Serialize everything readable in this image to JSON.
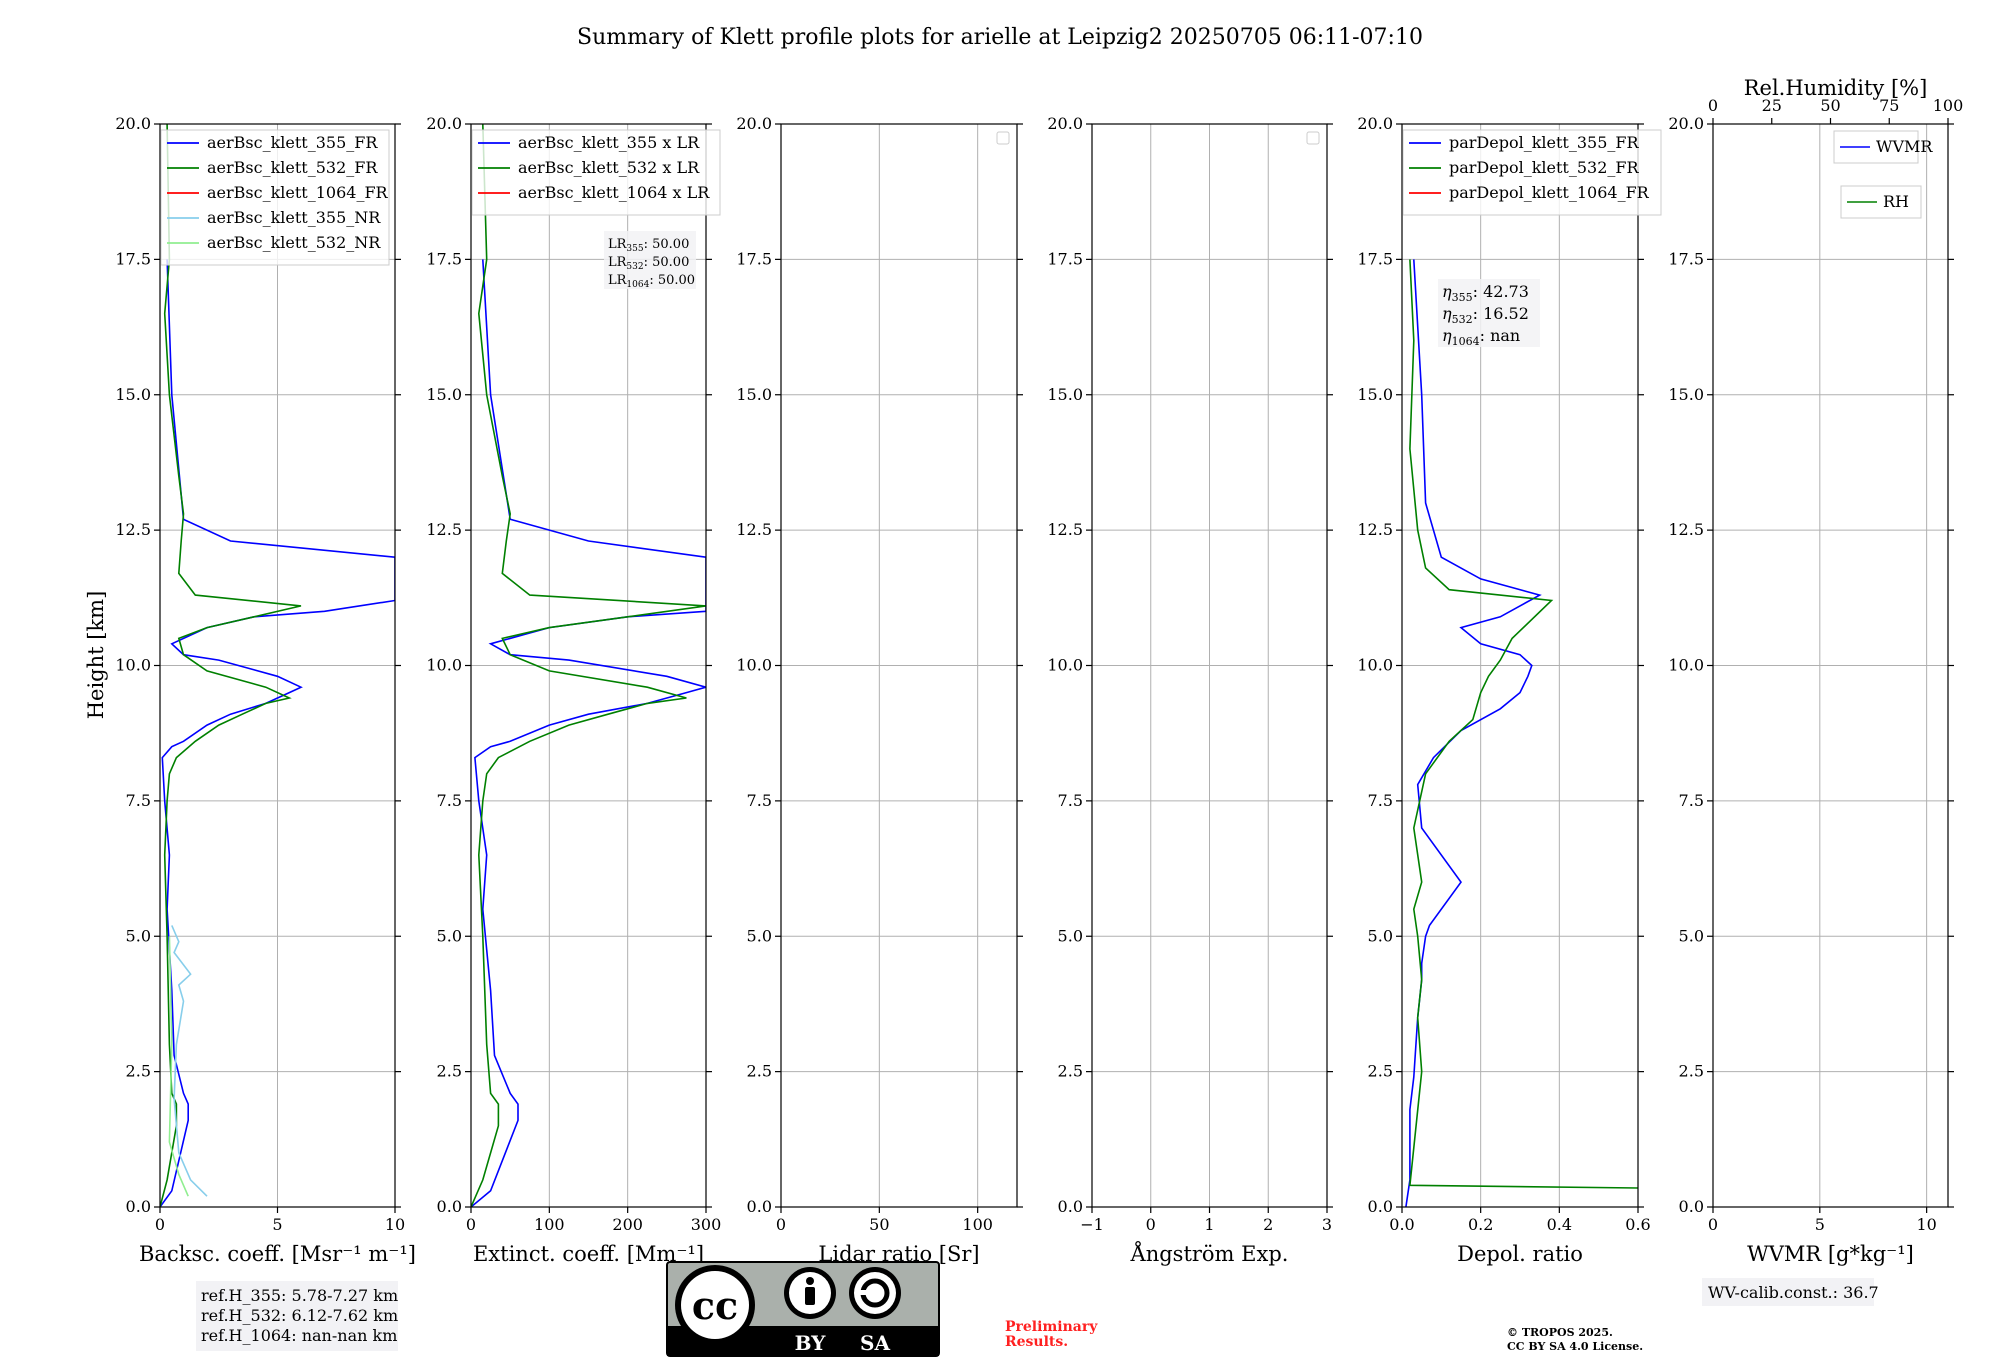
{
  "figure": {
    "title": "Summary of Klett profile plots for arielle at Leipzig2 20250705 06:11-07:10",
    "ylabel": "Height [km]"
  },
  "chart_data": [
    {
      "type": "line",
      "name": "backscatter",
      "xlabel": "Backsc. coeff. [Msr⁻¹ m⁻¹]",
      "xlim": [
        0,
        10
      ],
      "xticks": [
        "0",
        "5",
        "10"
      ],
      "ylim": [
        0,
        20
      ],
      "yticks": [
        "0.0",
        "2.5",
        "5.0",
        "7.5",
        "10.0",
        "12.5",
        "15.0",
        "17.5",
        "20.0"
      ],
      "legend": [
        "aerBsc_klett_355_FR",
        "aerBsc_klett_532_FR",
        "aerBsc_klett_1064_FR",
        "aerBsc_klett_355_NR",
        "aerBsc_klett_532_NR"
      ],
      "series": [
        {
          "name": "aerBsc_klett_355_FR",
          "color": "#0000ff",
          "x": [
            0.0,
            0.5,
            1.2,
            1.2,
            1.0,
            0.6,
            0.5,
            0.3,
            0.4,
            0.2,
            0.1,
            0.5,
            1.0,
            2.0,
            3.0,
            4.5,
            5.5,
            6.0,
            5.0,
            2.5,
            1.0,
            0.5,
            2.0,
            4.0,
            7.0,
            10.0,
            10.0,
            10.0,
            3.0,
            1.0,
            0.5,
            0.3
          ],
          "y": [
            0.0,
            0.3,
            1.6,
            1.9,
            2.1,
            2.8,
            4.0,
            5.5,
            6.5,
            7.5,
            8.3,
            8.5,
            8.6,
            8.9,
            9.1,
            9.3,
            9.5,
            9.6,
            9.8,
            10.1,
            10.2,
            10.4,
            10.7,
            10.9,
            11.0,
            11.2,
            11.5,
            12.0,
            12.3,
            12.7,
            15.0,
            17.5
          ]
        },
        {
          "name": "aerBsc_klett_532_FR",
          "color": "#008000",
          "x": [
            0.0,
            0.3,
            0.7,
            0.7,
            0.5,
            0.4,
            0.3,
            0.2,
            0.3,
            0.4,
            0.7,
            1.5,
            2.5,
            3.5,
            4.5,
            5.5,
            4.5,
            2.0,
            1.0,
            0.8,
            2.0,
            4.0,
            6.0,
            1.5,
            0.8,
            0.9,
            1.0,
            0.8,
            0.4,
            0.2,
            0.4,
            0.3
          ],
          "y": [
            0.0,
            0.5,
            1.5,
            1.9,
            2.1,
            3.0,
            5.0,
            6.5,
            7.5,
            8.0,
            8.3,
            8.6,
            8.9,
            9.1,
            9.3,
            9.4,
            9.6,
            9.9,
            10.2,
            10.5,
            10.7,
            10.9,
            11.1,
            11.3,
            11.7,
            12.3,
            12.8,
            13.5,
            15.0,
            16.5,
            17.5,
            20.0
          ]
        },
        {
          "name": "aerBsc_klett_1064_FR",
          "color": "#ff0000",
          "x": [],
          "y": []
        },
        {
          "name": "aerBsc_klett_355_NR",
          "color": "#87ceeb",
          "x": [
            2.0,
            1.3,
            0.8,
            0.6,
            0.7,
            1.0,
            0.8,
            1.3,
            0.6,
            0.8,
            0.5
          ],
          "y": [
            0.2,
            0.5,
            1.0,
            2.0,
            3.0,
            3.8,
            4.1,
            4.3,
            4.7,
            4.9,
            5.2
          ]
        },
        {
          "name": "aerBsc_klett_532_NR",
          "color": "#90ee90",
          "x": [
            1.2,
            0.8,
            0.4,
            0.5,
            0.4
          ],
          "y": [
            0.2,
            0.6,
            1.2,
            3.0,
            5.0
          ]
        }
      ],
      "info": [
        "ref.H_355: 5.78-7.27 km",
        "ref.H_532: 6.12-7.62 km",
        "ref.H_1064: nan-nan km"
      ]
    },
    {
      "type": "line",
      "name": "extinction",
      "xlabel": "Extinct. coeff. [Mm⁻¹]",
      "xlim": [
        0,
        300
      ],
      "xticks": [
        "0",
        "100",
        "200",
        "300"
      ],
      "ylim": [
        0,
        20
      ],
      "legend": [
        "aerBsc_klett_355 x LR",
        "aerBsc_klett_532 x LR",
        "aerBsc_klett_1064 x LR"
      ],
      "lidar_ratios": {
        "lr355": "50.00",
        "lr532": "50.00",
        "lr1064": "50.00"
      },
      "series": [
        {
          "name": "aerBsc_klett_355 x LR",
          "color": "#0000ff",
          "x": [
            0,
            25,
            60,
            60,
            50,
            30,
            25,
            15,
            20,
            10,
            5,
            25,
            50,
            100,
            150,
            225,
            275,
            300,
            250,
            125,
            50,
            25,
            100,
            200,
            300,
            300,
            300,
            150,
            50,
            25,
            15
          ],
          "y": [
            0.0,
            0.3,
            1.6,
            1.9,
            2.1,
            2.8,
            4.0,
            5.5,
            6.5,
            7.5,
            8.3,
            8.5,
            8.6,
            8.9,
            9.1,
            9.3,
            9.5,
            9.6,
            9.8,
            10.1,
            10.2,
            10.4,
            10.7,
            10.9,
            11.0,
            11.5,
            12.0,
            12.3,
            12.7,
            15.0,
            17.5
          ]
        },
        {
          "name": "aerBsc_klett_532 x LR",
          "color": "#008000",
          "x": [
            0,
            15,
            35,
            35,
            25,
            20,
            15,
            10,
            15,
            20,
            35,
            75,
            125,
            175,
            225,
            275,
            225,
            100,
            50,
            40,
            100,
            200,
            300,
            75,
            40,
            45,
            50,
            40,
            20,
            10,
            20,
            15
          ],
          "y": [
            0.0,
            0.5,
            1.5,
            1.9,
            2.1,
            3.0,
            5.0,
            6.5,
            7.5,
            8.0,
            8.3,
            8.6,
            8.9,
            9.1,
            9.3,
            9.4,
            9.6,
            9.9,
            10.2,
            10.5,
            10.7,
            10.9,
            11.1,
            11.3,
            11.7,
            12.3,
            12.8,
            13.5,
            15.0,
            16.5,
            17.5,
            20.0
          ]
        },
        {
          "name": "aerBsc_klett_1064 x LR",
          "color": "#ff0000",
          "x": [],
          "y": []
        }
      ]
    },
    {
      "type": "line",
      "name": "lidar_ratio",
      "xlabel": "Lidar ratio [Sr]",
      "xlim": [
        0,
        120
      ],
      "xticks": [
        "0",
        "50",
        "100"
      ],
      "ylim": [
        0,
        20
      ],
      "series": []
    },
    {
      "type": "line",
      "name": "angstrom",
      "xlabel": "Ångström Exp.",
      "xlim": [
        -1,
        3
      ],
      "xticks": [
        "−1",
        "0",
        "1",
        "2",
        "3"
      ],
      "ylim": [
        0,
        20
      ],
      "series": []
    },
    {
      "type": "line",
      "name": "depol",
      "xlabel": "Depol. ratio",
      "xlim": [
        0,
        0.6
      ],
      "xticks": [
        "0.0",
        "0.2",
        "0.4",
        "0.6"
      ],
      "ylim": [
        0,
        20
      ],
      "legend": [
        "parDepol_klett_355_FR",
        "parDepol_klett_532_FR",
        "parDepol_klett_1064_FR"
      ],
      "eta": {
        "eta355": "42.73",
        "eta532": "16.52",
        "eta1064": "nan"
      },
      "series": [
        {
          "name": "parDepol_klett_355_FR",
          "color": "#0000ff",
          "x": [
            0.01,
            0.02,
            0.02,
            0.03,
            0.04,
            0.05,
            0.05,
            0.06,
            0.07,
            0.15,
            0.05,
            0.04,
            0.08,
            0.15,
            0.25,
            0.3,
            0.32,
            0.33,
            0.3,
            0.2,
            0.15,
            0.25,
            0.3,
            0.35,
            0.2,
            0.1,
            0.06,
            0.05,
            0.03
          ],
          "y": [
            0.0,
            0.5,
            1.8,
            2.4,
            3.5,
            4.2,
            4.5,
            5.0,
            5.2,
            6.0,
            7.0,
            7.8,
            8.3,
            8.8,
            9.2,
            9.5,
            9.8,
            10.0,
            10.2,
            10.4,
            10.7,
            10.9,
            11.1,
            11.3,
            11.6,
            12.0,
            13.0,
            15.0,
            17.5
          ]
        },
        {
          "name": "parDepol_klett_532_FR",
          "color": "#008000",
          "x": [
            0.6,
            0.02,
            0.05,
            0.04,
            0.05,
            0.04,
            0.03,
            0.05,
            0.03,
            0.06,
            0.12,
            0.18,
            0.2,
            0.22,
            0.25,
            0.28,
            0.38,
            0.12,
            0.06,
            0.04,
            0.02,
            0.03,
            0.02
          ],
          "y": [
            0.35,
            0.4,
            2.5,
            3.5,
            4.2,
            5.0,
            5.5,
            6.0,
            7.0,
            8.0,
            8.6,
            9.0,
            9.5,
            9.8,
            10.1,
            10.5,
            11.2,
            11.4,
            11.8,
            12.5,
            14.0,
            16.0,
            17.5
          ]
        },
        {
          "name": "parDepol_klett_1064_FR",
          "color": "#ff0000",
          "x": [],
          "y": []
        }
      ]
    },
    {
      "type": "line",
      "name": "wvmr",
      "xlabel": "WVMR [g*kg⁻¹]",
      "xlim": [
        0,
        11
      ],
      "xticks": [
        "0",
        "5",
        "10"
      ],
      "top_axis_label": "Rel.Humidity [%]",
      "top_xlim": [
        0,
        100
      ],
      "top_xticks": [
        "0",
        "25",
        "50",
        "75",
        "100"
      ],
      "ylim": [
        0,
        20
      ],
      "legend": [
        "WVMR",
        "RH"
      ],
      "series": [
        {
          "name": "WVMR",
          "color": "#0000ff",
          "x": [],
          "y": []
        },
        {
          "name": "RH",
          "color": "#008000",
          "x": [],
          "y": []
        }
      ],
      "info": [
        "WV-calib.const.: 36.7"
      ]
    }
  ],
  "footer": {
    "cc_by": "BY",
    "cc_sa": "SA",
    "preliminary_line1": "Preliminary",
    "preliminary_line2": "Results.",
    "copyright_line1": "© TROPOS 2025.",
    "copyright_line2": "CC BY SA 4.0 License."
  },
  "colors": {
    "blue": "#0000ff",
    "green": "#008000",
    "red": "#ff0000",
    "preliminary": "#ff2020"
  }
}
